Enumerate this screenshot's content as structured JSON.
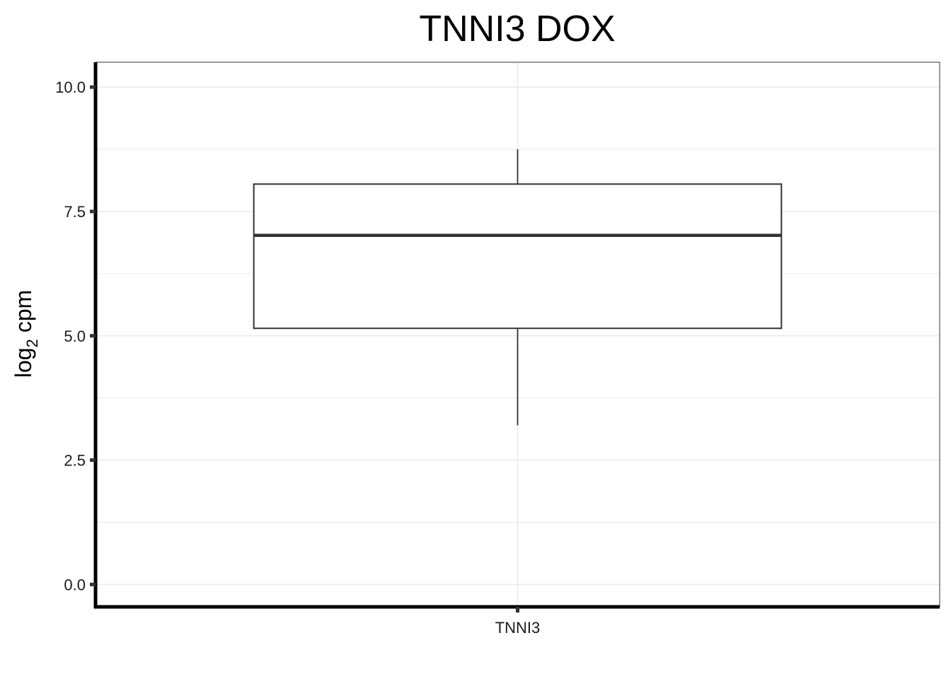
{
  "chart_data": {
    "type": "boxplot",
    "title": "TNNI3 DOX",
    "ylabel": {
      "main": "log",
      "sub": "2",
      "rest": " cpm"
    },
    "xlabel": "",
    "categories": [
      "TNNI3"
    ],
    "series": [
      {
        "category": "TNNI3",
        "whisker_low": 3.2,
        "q1": 5.15,
        "median": 7.02,
        "q3": 8.05,
        "whisker_high": 8.75
      }
    ],
    "ylim": [
      -0.45,
      10.5
    ],
    "yticks": [
      0.0,
      2.5,
      5.0,
      7.5,
      10.0
    ],
    "ytick_labels": [
      "0.0",
      "2.5",
      "5.0",
      "7.5",
      "10.0"
    ],
    "minor_yticks": [
      1.25,
      3.75,
      6.25,
      8.75
    ],
    "grid": true,
    "colors": {
      "box_fill": "#ffffff",
      "box_line": "#333333",
      "grid": "#ebebeb",
      "axis": "#000000"
    }
  }
}
